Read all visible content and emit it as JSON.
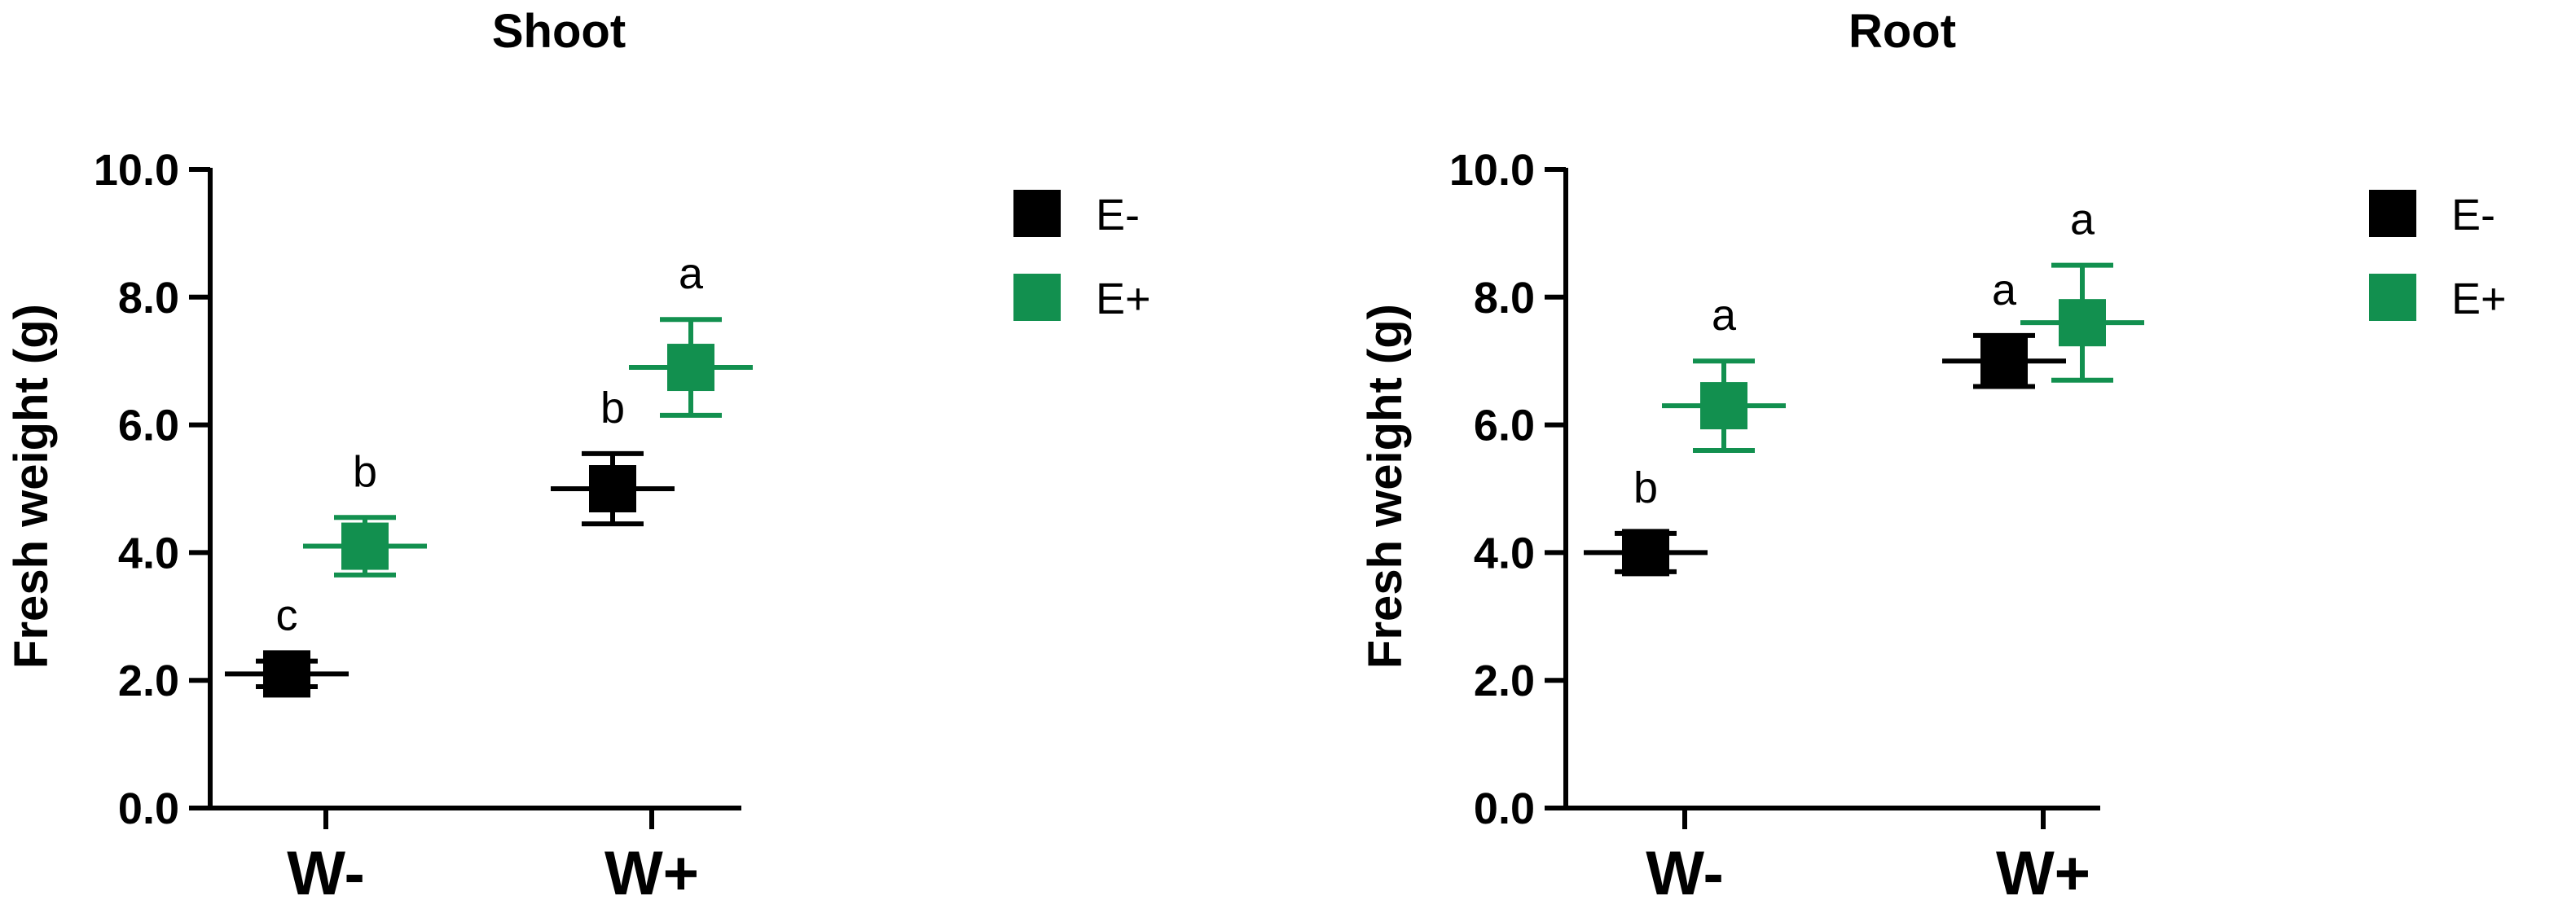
{
  "chart_data": [
    {
      "type": "scatter",
      "title": "Shoot",
      "xlabel": "",
      "ylabel": "Fresh weight (g)",
      "ylim": [
        0,
        10
      ],
      "yticks": [
        "0.0",
        "2.0",
        "4.0",
        "6.0",
        "8.0",
        "10.0"
      ],
      "categories": [
        "W-",
        "W+"
      ],
      "legend_placement": "top-right",
      "series": [
        {
          "name": "E-",
          "color": "#000000",
          "values": [
            2.1,
            5.0
          ],
          "errors": [
            0.2,
            0.55
          ],
          "letters": [
            "c",
            "b"
          ]
        },
        {
          "name": "E+",
          "color": "#12904f",
          "values": [
            4.1,
            6.9
          ],
          "errors": [
            0.45,
            0.75
          ],
          "letters": [
            "b",
            "a"
          ]
        }
      ]
    },
    {
      "type": "scatter",
      "title": "Root",
      "xlabel": "",
      "ylabel": "Fresh weight (g)",
      "ylim": [
        0,
        10
      ],
      "yticks": [
        "0.0",
        "2.0",
        "4.0",
        "6.0",
        "8.0",
        "10.0"
      ],
      "categories": [
        "W-",
        "W+"
      ],
      "legend_placement": "top-right",
      "series": [
        {
          "name": "E-",
          "color": "#000000",
          "values": [
            4.0,
            7.0
          ],
          "errors": [
            0.3,
            0.4
          ],
          "letters": [
            "b",
            "a"
          ]
        },
        {
          "name": "E+",
          "color": "#12904f",
          "values": [
            6.3,
            7.6
          ],
          "errors": [
            0.7,
            0.9
          ],
          "letters": [
            "a",
            "a"
          ]
        }
      ]
    }
  ]
}
